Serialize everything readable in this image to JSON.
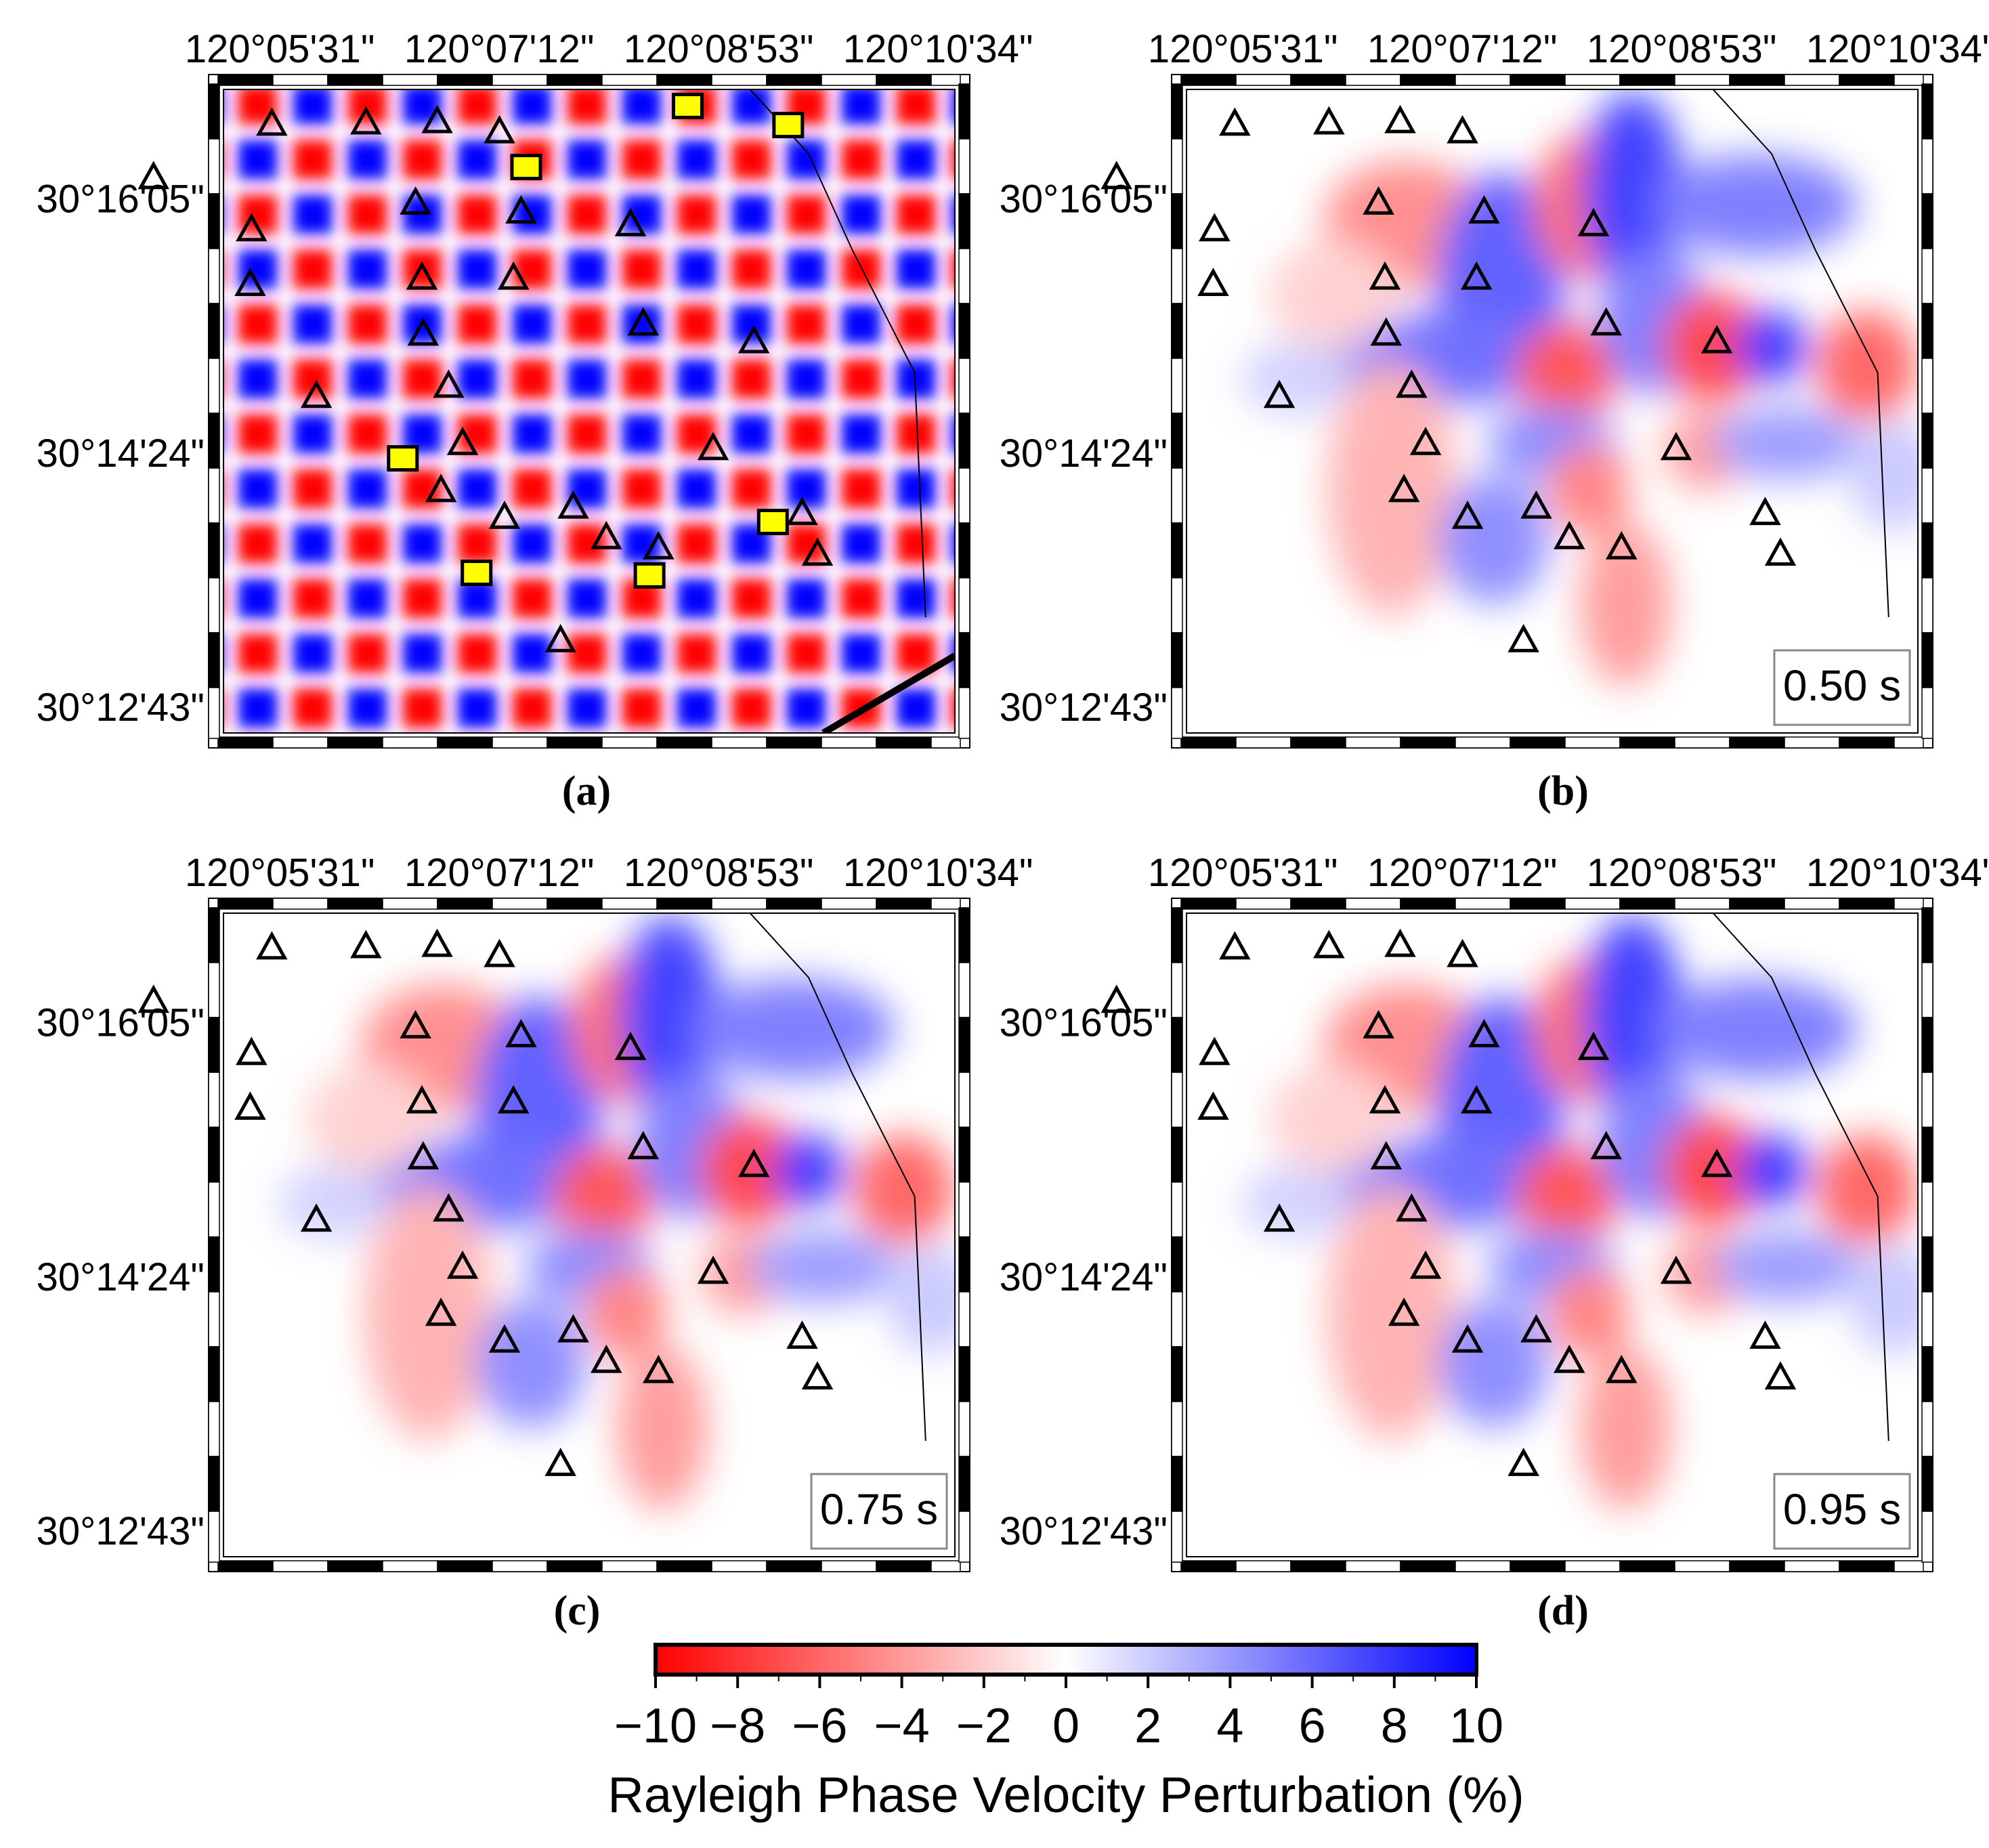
{
  "figure": {
    "lon_ticks": [
      "120°05'31\"",
      "120°07'12\"",
      "120°08'53\"",
      "120°10'34\""
    ],
    "lat_ticks": [
      "30°16'05\"",
      "30°14'24\"",
      "30°12'43\""
    ],
    "panels": [
      {
        "id": "a",
        "label": "(a)",
        "type": "checkerboard",
        "period": ""
      },
      {
        "id": "b",
        "label": "(b)",
        "type": "model",
        "period": "0.50 s"
      },
      {
        "id": "c",
        "label": "(c)",
        "type": "model",
        "period": "0.75 s"
      },
      {
        "id": "d",
        "label": "(d)",
        "type": "model",
        "period": "0.95 s"
      }
    ],
    "colorbar": {
      "title": "Rayleigh Phase Velocity Perturbation (%)",
      "ticks": [
        "−10",
        "−8",
        "−6",
        "−4",
        "−2",
        "0",
        "2",
        "4",
        "6",
        "8",
        "10"
      ],
      "range": [
        -10,
        10
      ],
      "colors": {
        "negative": "#ff0000",
        "zero": "#ffffff",
        "positive": "#0000ff"
      }
    },
    "markers": {
      "station_icon": "triangle-icon",
      "source_icon": "yellow-square-icon",
      "source_color": "#ffff00"
    }
  }
}
